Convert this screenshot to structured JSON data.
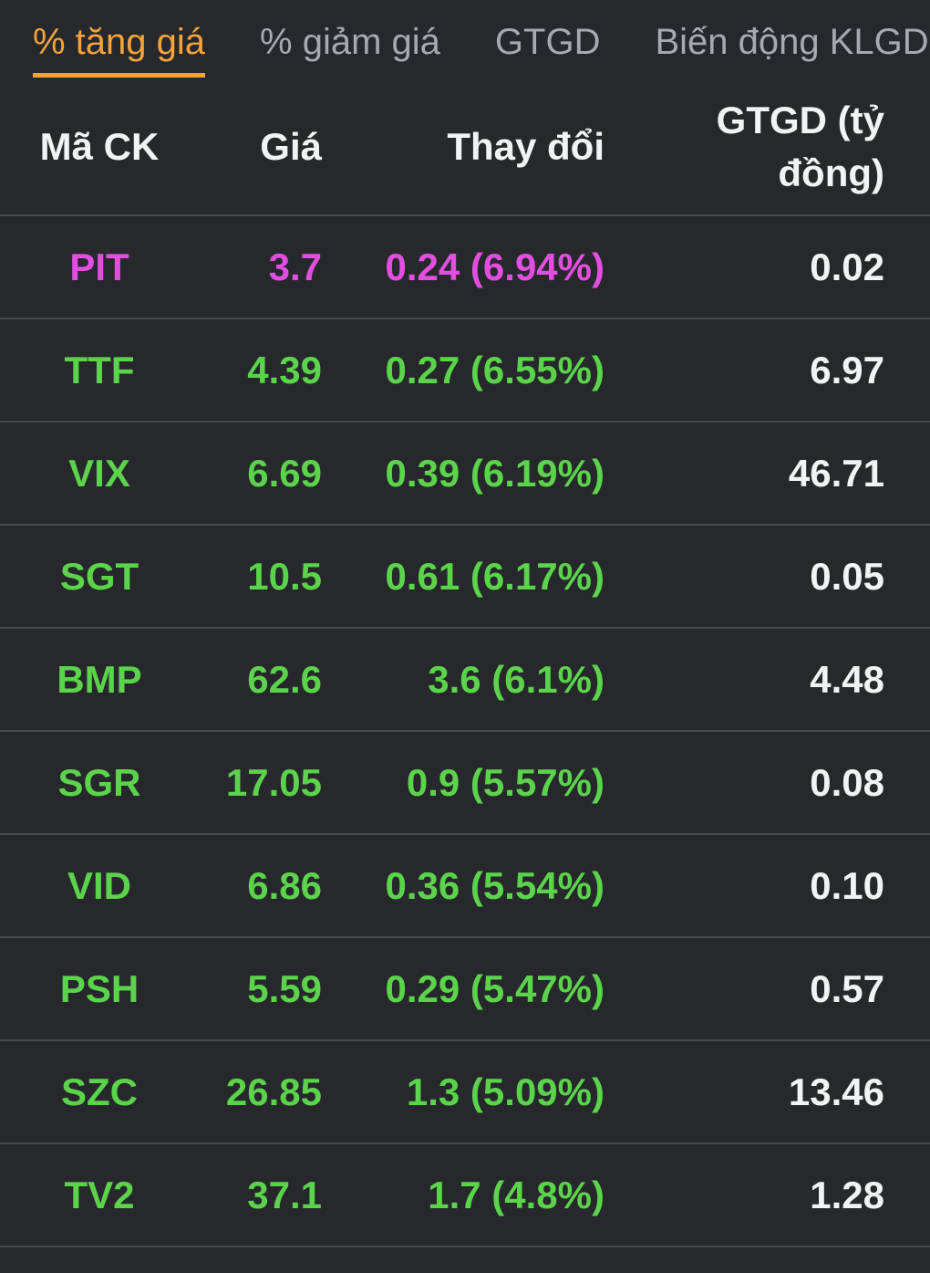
{
  "colors": {
    "background": "#26282c",
    "accent_orange": "#f2a33c",
    "up_green": "#5bd34b",
    "ceiling_magenta": "#e24fe0",
    "text_primary": "#f2f3f4",
    "text_secondary": "#a6a9ad",
    "divider": "#47494d"
  },
  "tabs": [
    {
      "label": "% tăng giá",
      "active": true
    },
    {
      "label": "% giảm giá",
      "active": false
    },
    {
      "label": "GTGD",
      "active": false
    },
    {
      "label": "Biến động KLGD",
      "active": false
    }
  ],
  "table": {
    "headers": {
      "symbol": "Mã CK",
      "price": "Giá",
      "change": "Thay đổi",
      "value": "GTGD (tỷ đồng)"
    },
    "rows": [
      {
        "symbol": "PIT",
        "price": "3.7",
        "change": "0.24 (6.94%)",
        "value": "0.02",
        "color_hex": "#e24fe0"
      },
      {
        "symbol": "TTF",
        "price": "4.39",
        "change": "0.27 (6.55%)",
        "value": "6.97",
        "color_hex": "#5bd34b"
      },
      {
        "symbol": "VIX",
        "price": "6.69",
        "change": "0.39 (6.19%)",
        "value": "46.71",
        "color_hex": "#5bd34b"
      },
      {
        "symbol": "SGT",
        "price": "10.5",
        "change": "0.61 (6.17%)",
        "value": "0.05",
        "color_hex": "#5bd34b"
      },
      {
        "symbol": "BMP",
        "price": "62.6",
        "change": "3.6 (6.1%)",
        "value": "4.48",
        "color_hex": "#5bd34b"
      },
      {
        "symbol": "SGR",
        "price": "17.05",
        "change": "0.9 (5.57%)",
        "value": "0.08",
        "color_hex": "#5bd34b"
      },
      {
        "symbol": "VID",
        "price": "6.86",
        "change": "0.36 (5.54%)",
        "value": "0.10",
        "color_hex": "#5bd34b"
      },
      {
        "symbol": "PSH",
        "price": "5.59",
        "change": "0.29 (5.47%)",
        "value": "0.57",
        "color_hex": "#5bd34b"
      },
      {
        "symbol": "SZC",
        "price": "26.85",
        "change": "1.3 (5.09%)",
        "value": "13.46",
        "color_hex": "#5bd34b"
      },
      {
        "symbol": "TV2",
        "price": "37.1",
        "change": "1.7 (4.8%)",
        "value": "1.28",
        "color_hex": "#5bd34b"
      }
    ]
  }
}
